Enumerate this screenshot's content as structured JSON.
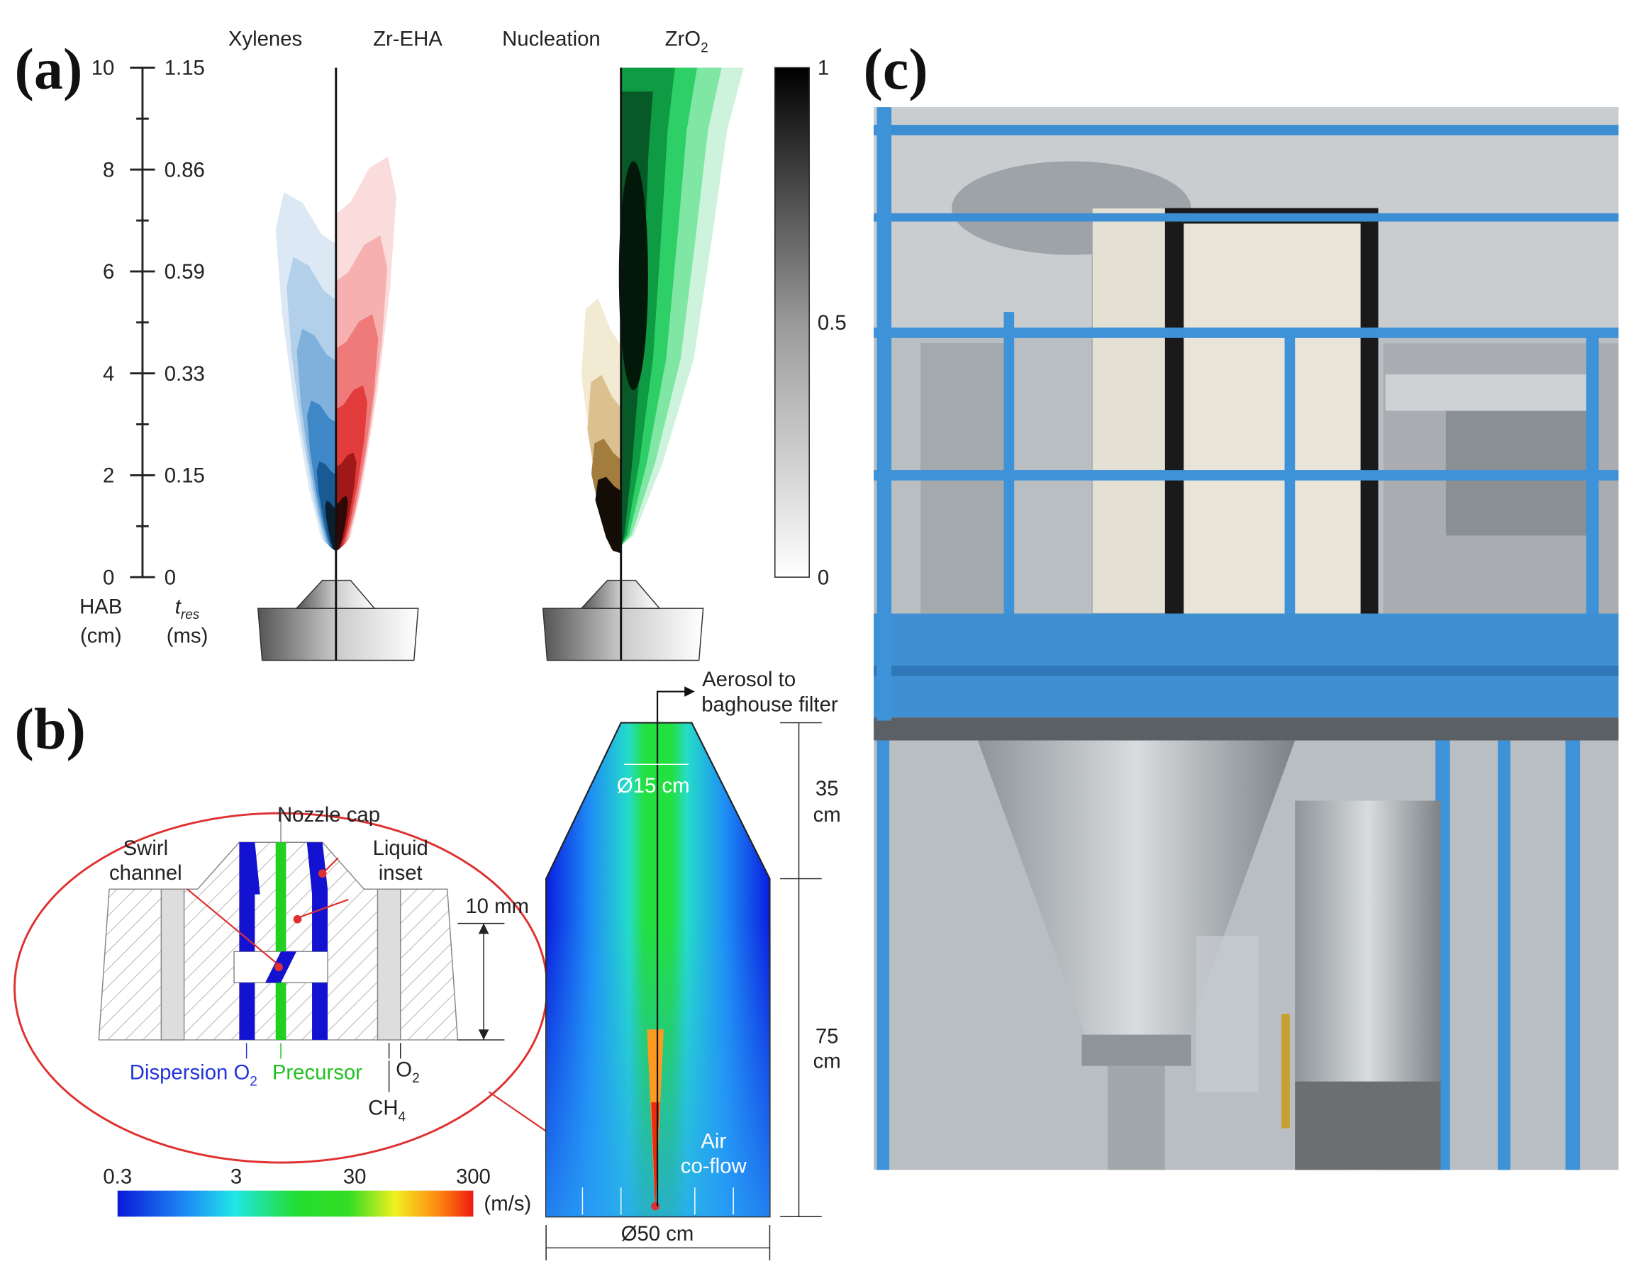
{
  "panel_a": {
    "label": "(a)",
    "columns": [
      "Xylenes",
      "Zr-EHA",
      "Nucleation",
      {
        "text": "ZrO",
        "sub": "2"
      }
    ],
    "hab_ticks": [
      "0",
      "2",
      "4",
      "6",
      "8",
      "10"
    ],
    "tres_ticks": [
      "0",
      "0.15",
      "0.33",
      "0.59",
      "0.86",
      "1.15"
    ],
    "hab_label": [
      "HAB",
      "(cm)"
    ],
    "tres_label": {
      "text": "t",
      "sub": "res",
      "unit": "(ms)"
    },
    "colorbar_ticks": [
      "0",
      "0.5",
      "1"
    ]
  },
  "panel_b": {
    "label": "(b)",
    "nozzle": {
      "nozzle_cap": "Nozzle cap",
      "swirl_channel": [
        "Swirl",
        "channel"
      ],
      "liquid_inset": [
        "Liquid",
        "inset"
      ],
      "dimension": "10 mm",
      "dispersion": {
        "text": "Dispersion O",
        "sub": "2"
      },
      "precursor": "Precursor",
      "ch4": {
        "text": "CH",
        "sub": "4"
      },
      "o2": {
        "text": "O",
        "sub": "2"
      }
    },
    "colorbar_ticks": [
      "0.3",
      "3",
      "30",
      "300"
    ],
    "colorbar_unit": "(m/s)",
    "reactor": {
      "outlet": [
        "Aerosol to",
        "baghouse filter"
      ],
      "top_diameter": "Ø15 cm",
      "upper_height": [
        "35",
        "cm"
      ],
      "lower_height": [
        "75",
        "cm"
      ],
      "coflow": [
        "Air",
        "co-flow"
      ],
      "bottom_diameter": "Ø50 cm"
    }
  },
  "panel_c": {
    "label": "(c)"
  }
}
